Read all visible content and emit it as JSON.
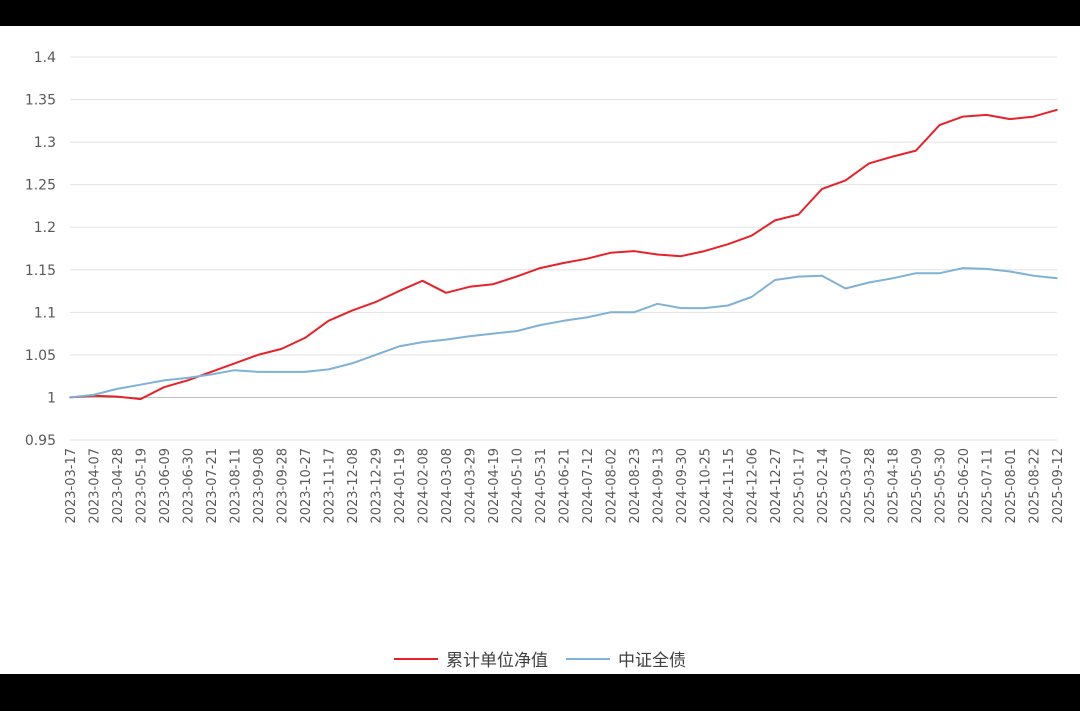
{
  "chart_data": {
    "type": "line",
    "title": "",
    "xlabel": "",
    "ylabel": "",
    "ylim": [
      0.95,
      1.4
    ],
    "yticks": [
      "0.95",
      "1",
      "1.05",
      "1.1",
      "1.15",
      "1.2",
      "1.25",
      "1.3",
      "1.35",
      "1.4"
    ],
    "grid": true,
    "legend_position": "bottom",
    "x": [
      "2023-03-17",
      "2023-04-07",
      "2023-04-28",
      "2023-05-19",
      "2023-06-09",
      "2023-06-30",
      "2023-07-21",
      "2023-08-11",
      "2023-09-08",
      "2023-09-28",
      "2023-10-27",
      "2023-11-17",
      "2023-12-08",
      "2023-12-29",
      "2024-01-19",
      "2024-02-08",
      "2024-03-08",
      "2024-03-29",
      "2024-04-19",
      "2024-05-10",
      "2024-05-31",
      "2024-06-21",
      "2024-07-12",
      "2024-08-02",
      "2024-08-23",
      "2024-09-13",
      "2024-09-30",
      "2024-10-25",
      "2024-11-15",
      "2024-12-06",
      "2024-12-27",
      "2025-01-17",
      "2025-02-14",
      "2025-03-07",
      "2025-03-28",
      "2025-04-18",
      "2025-05-09",
      "2025-05-30",
      "2025-06-20",
      "2025-07-11",
      "2025-08-01",
      "2025-08-22",
      "2025-09-12"
    ],
    "series": [
      {
        "name": "累计单位净值",
        "color": "#e8222a",
        "values": [
          1.0,
          1.002,
          1.001,
          0.998,
          1.012,
          1.02,
          1.03,
          1.04,
          1.05,
          1.057,
          1.07,
          1.09,
          1.102,
          1.112,
          1.125,
          1.137,
          1.123,
          1.13,
          1.133,
          1.142,
          1.152,
          1.158,
          1.163,
          1.17,
          1.172,
          1.168,
          1.166,
          1.172,
          1.18,
          1.19,
          1.208,
          1.215,
          1.245,
          1.255,
          1.275,
          1.283,
          1.29,
          1.32,
          1.33,
          1.332,
          1.327,
          1.33,
          1.338
        ]
      },
      {
        "name": "中证全债",
        "color": "#7fb2d6",
        "values": [
          1.0,
          1.003,
          1.01,
          1.015,
          1.02,
          1.023,
          1.027,
          1.032,
          1.03,
          1.03,
          1.03,
          1.033,
          1.04,
          1.05,
          1.06,
          1.065,
          1.068,
          1.072,
          1.075,
          1.078,
          1.085,
          1.09,
          1.094,
          1.1,
          1.1,
          1.11,
          1.105,
          1.105,
          1.108,
          1.118,
          1.138,
          1.142,
          1.143,
          1.128,
          1.135,
          1.14,
          1.146,
          1.146,
          1.152,
          1.151,
          1.148,
          1.143,
          1.14
        ]
      }
    ]
  }
}
